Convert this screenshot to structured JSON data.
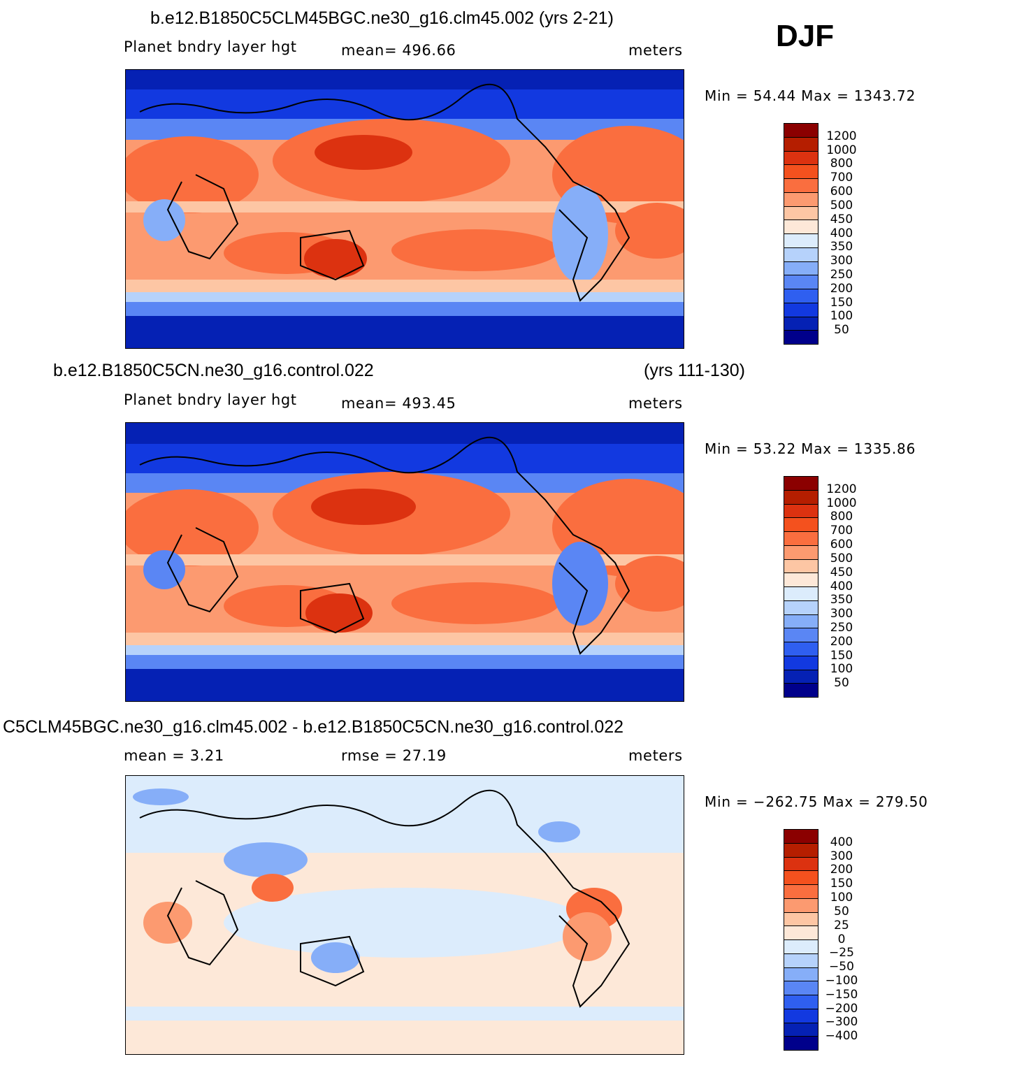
{
  "header": {
    "season": "DJF"
  },
  "panels": [
    {
      "id": "case",
      "title": "b.e12.B1850C5CLM45BGC.ne30_g16.clm45.002 (yrs 2-21)",
      "title_right": "",
      "left_label": "Planet  bndry  layer  hgt",
      "mid_label": "mean=  496.66",
      "units": "meters",
      "minmax": "Min  =    54.44  Max  =  1343.72",
      "map_kind": "absolute"
    },
    {
      "id": "control",
      "title": "b.e12.B1850C5CN.ne30_g16.control.022",
      "title_right": "(yrs 111-130)",
      "left_label": "Planet  bndry  layer  hgt",
      "mid_label": "mean=  493.45",
      "units": "meters",
      "minmax": "Min  =    53.22  Max  =  1335.86",
      "map_kind": "absolute"
    },
    {
      "id": "difference",
      "title": "C5CLM45BGC.ne30_g16.clm45.002 - b.e12.B1850C5CN.ne30_g16.control.022",
      "title_right": "",
      "left_label": "mean  =     3.21",
      "mid_label": "rmse  =    27.19",
      "units": "meters",
      "minmax": "Min  =  −262.75  Max  =  279.50",
      "map_kind": "difference"
    }
  ],
  "colorbars": {
    "absolute": {
      "colors": [
        "#8b0000",
        "#b51e00",
        "#dc3210",
        "#f4511e",
        "#fa6e3f",
        "#fc9a70",
        "#fdc6a4",
        "#fde8d8",
        "#dcecfc",
        "#b6d2fb",
        "#86aef8",
        "#5a86f4",
        "#2f5ff0",
        "#1239e0",
        "#0521b4",
        "#00008b"
      ],
      "labels": [
        "1200",
        "1000",
        "800",
        "700",
        "600",
        "500",
        "450",
        "400",
        "350",
        "300",
        "250",
        "200",
        "150",
        "100",
        "50"
      ]
    },
    "difference": {
      "colors": [
        "#8b0000",
        "#b51e00",
        "#dc3210",
        "#f4511e",
        "#fa6e3f",
        "#fc9a70",
        "#fdc6a4",
        "#fde8d8",
        "#dcecfc",
        "#b6d2fb",
        "#86aef8",
        "#5a86f4",
        "#2f5ff0",
        "#1239e0",
        "#0521b4",
        "#00008b"
      ],
      "labels": [
        "400",
        "300",
        "200",
        "150",
        "100",
        "50",
        "25",
        "0",
        "−25",
        "−50",
        "−100",
        "−150",
        "−200",
        "−300",
        "−400"
      ]
    }
  }
}
